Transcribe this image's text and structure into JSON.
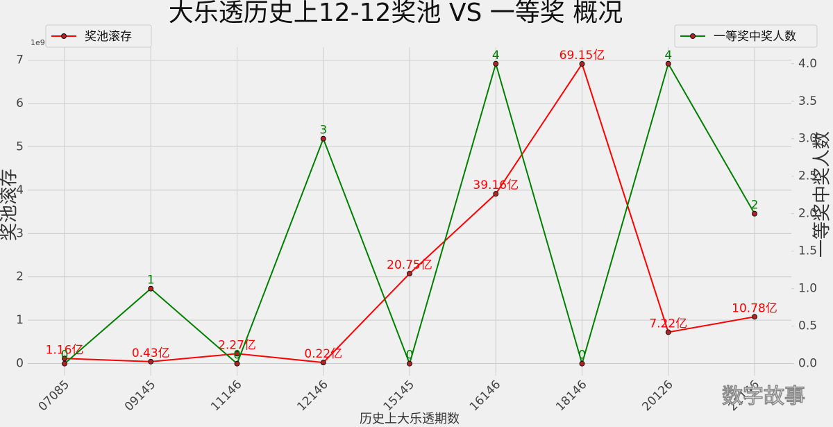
{
  "chart_data": {
    "type": "line",
    "title": "大乐透历史上12-12奖池 VS 一等奖 概况",
    "x_label": "历史上大乐透期数",
    "y_label": "奖池滚存",
    "y2_label": "一等奖中奖人数",
    "y_offset_label": "1e9",
    "watermark": "数字故事",
    "categories": [
      "07085",
      "09145",
      "11146",
      "12146",
      "15145",
      "16146",
      "18146",
      "20126",
      "21146"
    ],
    "ylim": [
      -0.28,
      7.3
    ],
    "yticks": [
      0,
      1,
      2,
      3,
      4,
      5,
      6,
      7
    ],
    "y2lim": [
      -0.16,
      4.22
    ],
    "y2ticks": [
      {
        "value": 0,
        "label": "0.0"
      },
      {
        "value": 0.5,
        "label": "0.5"
      },
      {
        "value": 1,
        "label": "1.0"
      },
      {
        "value": 1.5,
        "label": "1.5"
      },
      {
        "value": 2,
        "label": "2.0"
      },
      {
        "value": 2.5,
        "label": "2.5"
      },
      {
        "value": 3,
        "label": "3.0"
      },
      {
        "value": 3.5,
        "label": "3.5"
      },
      {
        "value": 4,
        "label": "4.0"
      }
    ],
    "grid": true,
    "series": [
      {
        "name": "奖池滚存",
        "color": "#ff0000",
        "legend": "upper left",
        "values": [
          0.116,
          0.043,
          0.227,
          0.022,
          2.075,
          3.916,
          6.915,
          0.722,
          1.078
        ],
        "value_labels": [
          "1.16亿",
          "0.43亿",
          "2.27亿",
          "0.22亿",
          "20.75亿",
          "39.16亿",
          "69.15亿",
          "7.22亿",
          "10.78亿"
        ]
      },
      {
        "name": "一等奖中奖人数",
        "color": "#008000",
        "axis": "y2",
        "legend": "upper right",
        "values": [
          0,
          1,
          0,
          3,
          0,
          4,
          0,
          4,
          2
        ]
      }
    ]
  }
}
